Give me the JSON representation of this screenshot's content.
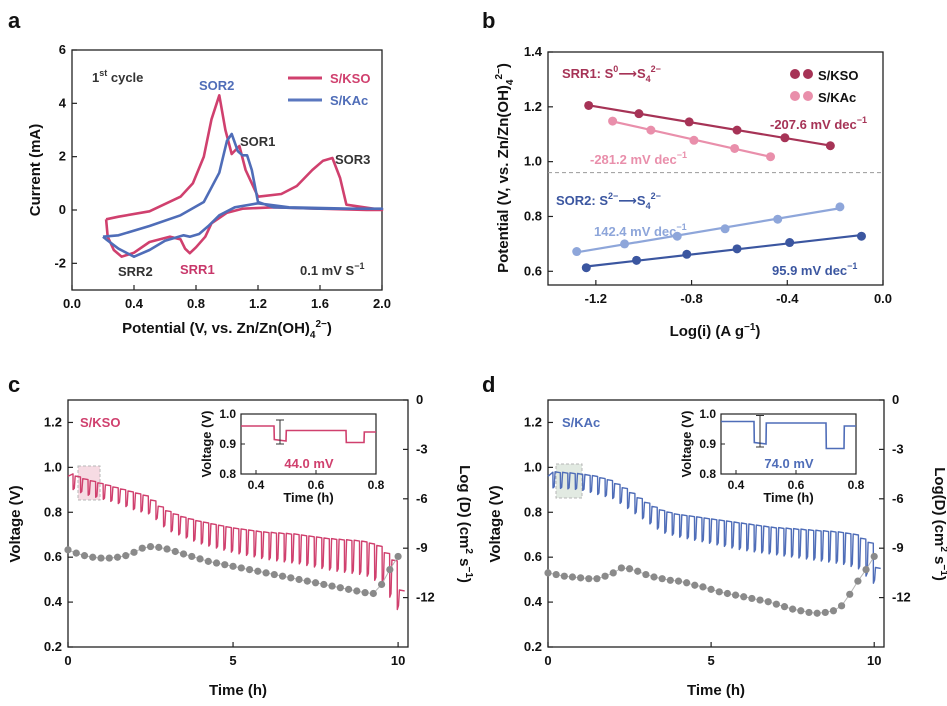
{
  "colors": {
    "kso": "#d0406e",
    "kso_light": "#e98fab",
    "kac": "#4f6db8",
    "kac_light": "#8ea6da",
    "soo": "#3b56a0",
    "srr": "#a63356",
    "gray": "#8a8a8a"
  },
  "chart_data": [
    {
      "panel": "a",
      "type": "line",
      "title": "",
      "xlabel": "Potential (V, vs. Zn/Zn(OH)4 2−)",
      "ylabel": "Current (mA)",
      "xlim": [
        0,
        2
      ],
      "ylim": [
        -3,
        6
      ],
      "xticks": [
        "0.0",
        "0.4",
        "0.8",
        "1.2",
        "1.6",
        "2.0"
      ],
      "yticks": [
        "-2",
        "0",
        "2",
        "4",
        "6"
      ],
      "legend": [
        "S/KSO",
        "S/KAc"
      ],
      "annotations": {
        "cycle_label": "1st cycle",
        "rate": "0.1 mV S⁻¹",
        "peaks": [
          "SOR2",
          "SOR1",
          "SOR3",
          "SRR2",
          "SRR1"
        ]
      },
      "series": [
        {
          "name": "S/KSO",
          "points": [
            [
              0.22,
              -0.35
            ],
            [
              0.3,
              -0.25
            ],
            [
              0.5,
              -0.05
            ],
            [
              0.7,
              0.5
            ],
            [
              0.78,
              1.0
            ],
            [
              0.85,
              2.0
            ],
            [
              0.9,
              3.4
            ],
            [
              0.95,
              4.3
            ],
            [
              0.99,
              3.0
            ],
            [
              1.03,
              2.1
            ],
            [
              1.08,
              2.4
            ],
            [
              1.12,
              1.5
            ],
            [
              1.2,
              0.5
            ],
            [
              1.35,
              0.6
            ],
            [
              1.45,
              0.9
            ],
            [
              1.55,
              1.5
            ],
            [
              1.62,
              1.85
            ],
            [
              1.68,
              1.95
            ],
            [
              1.73,
              1.2
            ],
            [
              1.77,
              0.2
            ],
            [
              2.0,
              0.0
            ],
            [
              1.9,
              0.0
            ],
            [
              1.6,
              0.05
            ],
            [
              1.3,
              0.1
            ],
            [
              1.1,
              0.05
            ],
            [
              1.0,
              -0.1
            ],
            [
              0.9,
              -0.5
            ],
            [
              0.86,
              -1.0
            ],
            [
              0.8,
              -1.4
            ],
            [
              0.76,
              -1.62
            ],
            [
              0.73,
              -1.45
            ],
            [
              0.7,
              -1.1
            ],
            [
              0.63,
              -1.0
            ],
            [
              0.5,
              -1.2
            ],
            [
              0.4,
              -1.6
            ],
            [
              0.32,
              -1.75
            ],
            [
              0.27,
              -1.5
            ],
            [
              0.23,
              -1.0
            ],
            [
              0.22,
              -0.35
            ]
          ]
        },
        {
          "name": "S/KAc",
          "points": [
            [
              0.2,
              -1.0
            ],
            [
              0.3,
              -0.95
            ],
            [
              0.5,
              -0.6
            ],
            [
              0.7,
              -0.2
            ],
            [
              0.85,
              0.3
            ],
            [
              0.95,
              1.4
            ],
            [
              1.0,
              2.6
            ],
            [
              1.03,
              2.85
            ],
            [
              1.07,
              2.2
            ],
            [
              1.1,
              2.05
            ],
            [
              1.13,
              2.05
            ],
            [
              1.16,
              1.5
            ],
            [
              1.2,
              0.3
            ],
            [
              1.3,
              0.1
            ],
            [
              1.6,
              0.05
            ],
            [
              2.0,
              0.05
            ],
            [
              1.8,
              0.05
            ],
            [
              1.4,
              0.1
            ],
            [
              1.2,
              0.25
            ],
            [
              1.05,
              0.1
            ],
            [
              0.95,
              -0.2
            ],
            [
              0.88,
              -0.6
            ],
            [
              0.82,
              -0.9
            ],
            [
              0.76,
              -1.0
            ],
            [
              0.72,
              -0.95
            ],
            [
              0.6,
              -1.15
            ],
            [
              0.5,
              -1.5
            ],
            [
              0.4,
              -1.75
            ],
            [
              0.3,
              -1.45
            ],
            [
              0.22,
              -1.1
            ],
            [
              0.2,
              -1.0
            ]
          ]
        }
      ]
    },
    {
      "panel": "b",
      "type": "scatter",
      "xlabel": "Log(i) (A g⁻¹)",
      "ylabel": "Potential (V, vs. Zn/Zn(OH)4 2−)",
      "xlim": [
        -1.4,
        0.0
      ],
      "ylim": [
        0.55,
        1.4
      ],
      "xticks": [
        "-1.2",
        "-0.8",
        "-0.4",
        "0.0"
      ],
      "yticks": [
        "0.6",
        "0.8",
        "1.0",
        "1.2",
        "1.4"
      ],
      "legend": [
        "S/KSO",
        "S/KAc"
      ],
      "annotations": {
        "srr1": "SRR1: S⁰⟶S₄²⁻",
        "sor2": "SOR2: S²⁻⟶S₄²⁻"
      },
      "divider_y": 0.96,
      "series": [
        {
          "name": "S/KSO SRR1",
          "slope_label": "-207.6 mV dec⁻¹",
          "x": [
            -1.23,
            -1.02,
            -0.81,
            -0.61,
            -0.41,
            -0.22
          ],
          "y": [
            1.205,
            1.175,
            1.145,
            1.115,
            1.087,
            1.058
          ]
        },
        {
          "name": "S/KAc SRR1",
          "slope_label": "-281.2 mV dec⁻¹",
          "x": [
            -1.13,
            -0.97,
            -0.79,
            -0.62,
            -0.47
          ],
          "y": [
            1.148,
            1.115,
            1.078,
            1.048,
            1.018
          ]
        },
        {
          "name": "S/KSO SOR2",
          "slope_label": "95.9 mV dec⁻¹",
          "x": [
            -1.24,
            -1.03,
            -0.82,
            -0.61,
            -0.39,
            -0.09
          ],
          "y": [
            0.613,
            0.64,
            0.662,
            0.682,
            0.705,
            0.728
          ]
        },
        {
          "name": "S/KAc SOR2",
          "slope_label": "142.4 mV dec⁻¹",
          "x": [
            -1.28,
            -1.08,
            -0.86,
            -0.66,
            -0.44,
            -0.18
          ],
          "y": [
            0.672,
            0.7,
            0.728,
            0.755,
            0.79,
            0.835
          ]
        }
      ]
    },
    {
      "panel": "c",
      "type": "line",
      "label": "S/KSO",
      "xlabel": "Time (h)",
      "ylabel": "Voltage (V)",
      "y2label": "Log (D) (cm² s⁻¹)",
      "xlim": [
        0,
        10.3
      ],
      "ylim": [
        0.2,
        1.3
      ],
      "y2lim": [
        -15,
        0
      ],
      "xticks": [
        "0",
        "5",
        "10"
      ],
      "yticks": [
        "0.2",
        "0.4",
        "0.6",
        "0.8",
        "1.0",
        "1.2"
      ],
      "y2ticks": [
        "0",
        "-3",
        "-6",
        "-9",
        "-12"
      ],
      "voltage_envelope_t": [
        0,
        0.5,
        1,
        1.5,
        2,
        2.5,
        3,
        3.5,
        4,
        5,
        6,
        7,
        8,
        9,
        9.5,
        10,
        10.2
      ],
      "voltage_envelope_v": [
        0.98,
        0.95,
        0.93,
        0.91,
        0.89,
        0.87,
        0.81,
        0.78,
        0.76,
        0.73,
        0.71,
        0.7,
        0.68,
        0.67,
        0.65,
        0.58,
        0.45
      ],
      "drop_depth": [
        0.07,
        0.07,
        0.07,
        0.07,
        0.08,
        0.08,
        0.09,
        0.09,
        0.1,
        0.11,
        0.12,
        0.13,
        0.14,
        0.15,
        0.17,
        0.22,
        0.25
      ],
      "logD_t": [
        0,
        0.25,
        0.5,
        0.75,
        1,
        1.25,
        1.5,
        1.75,
        2,
        2.25,
        2.5,
        2.75,
        3,
        3.25,
        3.5,
        3.75,
        4,
        4.25,
        4.5,
        4.75,
        5,
        5.25,
        5.5,
        5.75,
        6,
        6.25,
        6.5,
        6.75,
        7,
        7.25,
        7.5,
        7.75,
        8,
        8.25,
        8.5,
        8.75,
        9,
        9.25,
        9.5,
        9.75,
        10
      ],
      "logD_v": [
        -9.1,
        -9.3,
        -9.45,
        -9.55,
        -9.6,
        -9.6,
        -9.55,
        -9.45,
        -9.25,
        -9.0,
        -8.9,
        -8.95,
        -9.05,
        -9.2,
        -9.35,
        -9.5,
        -9.65,
        -9.8,
        -9.9,
        -10.0,
        -10.1,
        -10.2,
        -10.3,
        -10.4,
        -10.5,
        -10.6,
        -10.7,
        -10.8,
        -10.9,
        -11.0,
        -11.1,
        -11.2,
        -11.3,
        -11.4,
        -11.5,
        -11.6,
        -11.7,
        -11.75,
        -11.2,
        -10.3,
        -9.5
      ],
      "inset": {
        "xlabel": "Time (h)",
        "ylabel": "Voltage (V)",
        "xticks": [
          "0.4",
          "0.6",
          "0.8"
        ],
        "yticks": [
          "0.8",
          "0.9",
          "1.0"
        ],
        "xlim": [
          0.35,
          0.8
        ],
        "ylim": [
          0.8,
          1.0
        ],
        "annotation": "44.0 mV",
        "t": [
          0.35,
          0.46,
          0.461,
          0.5,
          0.501,
          0.7,
          0.701,
          0.76,
          0.761,
          0.8
        ],
        "v": [
          0.96,
          0.96,
          0.915,
          0.91,
          0.945,
          0.945,
          0.905,
          0.905,
          0.94,
          0.94
        ]
      }
    },
    {
      "panel": "d",
      "type": "line",
      "label": "S/KAc",
      "xlabel": "Time (h)",
      "ylabel": "Voltage (V)",
      "y2label": "Log(D) (cm² s⁻¹)",
      "xlim": [
        0,
        10.3
      ],
      "ylim": [
        0.2,
        1.3
      ],
      "y2lim": [
        -15,
        0
      ],
      "xticks": [
        "0",
        "5",
        "10"
      ],
      "yticks": [
        "0.2",
        "0.4",
        "0.6",
        "0.8",
        "1.0",
        "1.2"
      ],
      "y2ticks": [
        "0",
        "-3",
        "-6",
        "-9",
        "-12"
      ],
      "voltage_envelope_t": [
        0,
        0.5,
        1,
        1.5,
        2,
        2.5,
        3,
        3.5,
        4,
        5,
        6,
        7,
        8,
        9,
        9.5,
        10,
        10.2
      ],
      "voltage_envelope_v": [
        0.98,
        0.975,
        0.97,
        0.96,
        0.94,
        0.9,
        0.85,
        0.81,
        0.79,
        0.77,
        0.75,
        0.73,
        0.72,
        0.71,
        0.7,
        0.66,
        0.55
      ],
      "drop_depth": [
        0.07,
        0.07,
        0.07,
        0.08,
        0.08,
        0.09,
        0.09,
        0.1,
        0.1,
        0.11,
        0.12,
        0.12,
        0.13,
        0.14,
        0.15,
        0.18,
        0.2
      ],
      "logD_t": [
        0,
        0.25,
        0.5,
        0.75,
        1,
        1.25,
        1.5,
        1.75,
        2,
        2.25,
        2.5,
        2.75,
        3,
        3.25,
        3.5,
        3.75,
        4,
        4.25,
        4.5,
        4.75,
        5,
        5.25,
        5.5,
        5.75,
        6,
        6.25,
        6.5,
        6.75,
        7,
        7.25,
        7.5,
        7.75,
        8,
        8.25,
        8.5,
        8.75,
        9,
        9.25,
        9.5,
        9.75,
        10
      ],
      "logD_v": [
        -10.5,
        -10.6,
        -10.7,
        -10.75,
        -10.8,
        -10.85,
        -10.85,
        -10.7,
        -10.5,
        -10.2,
        -10.25,
        -10.4,
        -10.6,
        -10.75,
        -10.85,
        -10.95,
        -11.0,
        -11.1,
        -11.25,
        -11.35,
        -11.5,
        -11.65,
        -11.75,
        -11.85,
        -11.95,
        -12.05,
        -12.15,
        -12.25,
        -12.4,
        -12.55,
        -12.7,
        -12.8,
        -12.9,
        -12.95,
        -12.9,
        -12.8,
        -12.5,
        -11.8,
        -11.0,
        -10.3,
        -9.5
      ],
      "inset": {
        "xlabel": "Time (h)",
        "ylabel": "Voltage (V)",
        "xticks": [
          "0.4",
          "0.6",
          "0.8"
        ],
        "yticks": [
          "0.8",
          "0.9",
          "1.0"
        ],
        "xlim": [
          0.35,
          0.8
        ],
        "ylim": [
          0.8,
          1.0
        ],
        "annotation": "74.0 mV",
        "t": [
          0.35,
          0.46,
          0.461,
          0.5,
          0.501,
          0.7,
          0.701,
          0.76,
          0.761,
          0.8
        ],
        "v": [
          0.975,
          0.975,
          0.905,
          0.9,
          0.97,
          0.97,
          0.885,
          0.885,
          0.96,
          0.96
        ]
      }
    }
  ],
  "labels": {
    "a": "a",
    "b": "b",
    "c": "c",
    "d": "d",
    "a_cycle": "1",
    "a_cycle_sup": "st",
    "a_cycle_rest": " cycle",
    "a_rate": "0.1 mV S",
    "a_rate_sup": "−1",
    "a_sor2": "SOR2",
    "a_sor1": "SOR1",
    "a_sor3": "SOR3",
    "a_srr2": "SRR2",
    "a_srr1": "SRR1",
    "a_leg_kso": "S/KSO",
    "a_leg_kac": "S/KAc",
    "a_xlabel": "Potential (V, vs. Zn/Zn(OH)",
    "a_xlabel_sub": "4",
    "a_xlabel_sup": "2−",
    "a_xlabel_end": ")",
    "a_ylabel": "Current (mA)",
    "b_ylabel": "Potential (V, vs. Zn/Zn(OH)",
    "b_ylabel_sub": "4",
    "b_ylabel_sup": "2−",
    "b_ylabel_end": ")",
    "b_xlabel": "Log(i) (A g",
    "b_xlabel_sup": "−1",
    "b_xlabel_end": ")",
    "b_srr1": "SRR1: S",
    "b_srr1_sup0": "0",
    "b_srr1_arrow": "⟶",
    "b_srr1_s": "S",
    "b_srr1_sub": "4",
    "b_srr1_sup": "2−",
    "b_sor2": "SOR2: S",
    "b_sor2_sup0": "2−",
    "b_sor2_arrow": "⟶",
    "b_sor2_s": "S",
    "b_sor2_sub": "4",
    "b_sor2_sup": "2−",
    "b_leg_kso": "S/KSO",
    "b_leg_kac": "S/KAc",
    "b_slope1": "-207.6 mV dec",
    "b_slope2": "-281.2 mV dec",
    "b_slope3": "142.4 mV dec",
    "b_slope4": "95.9 mV dec",
    "b_slope_sup": "−1",
    "c_label": "S/KSO",
    "d_label": "S/KAc",
    "c_ylabel": "Voltage (V)",
    "d_ylabel": "Voltage (V)",
    "c_y2label": "Log (D) (cm",
    "d_y2label": "Log(D) (cm",
    "y2_sup1": "2",
    "y2_mid": " s",
    "y2_sup2": "−1",
    "y2_end": ")",
    "c_xlabel": "Time (h)",
    "d_xlabel": "Time (h)",
    "inset_ylabel": "Voltage (V)",
    "inset_xlabel": "Time (h)",
    "c_inset_ann": "44.0 mV",
    "d_inset_ann": "74.0 mV"
  }
}
